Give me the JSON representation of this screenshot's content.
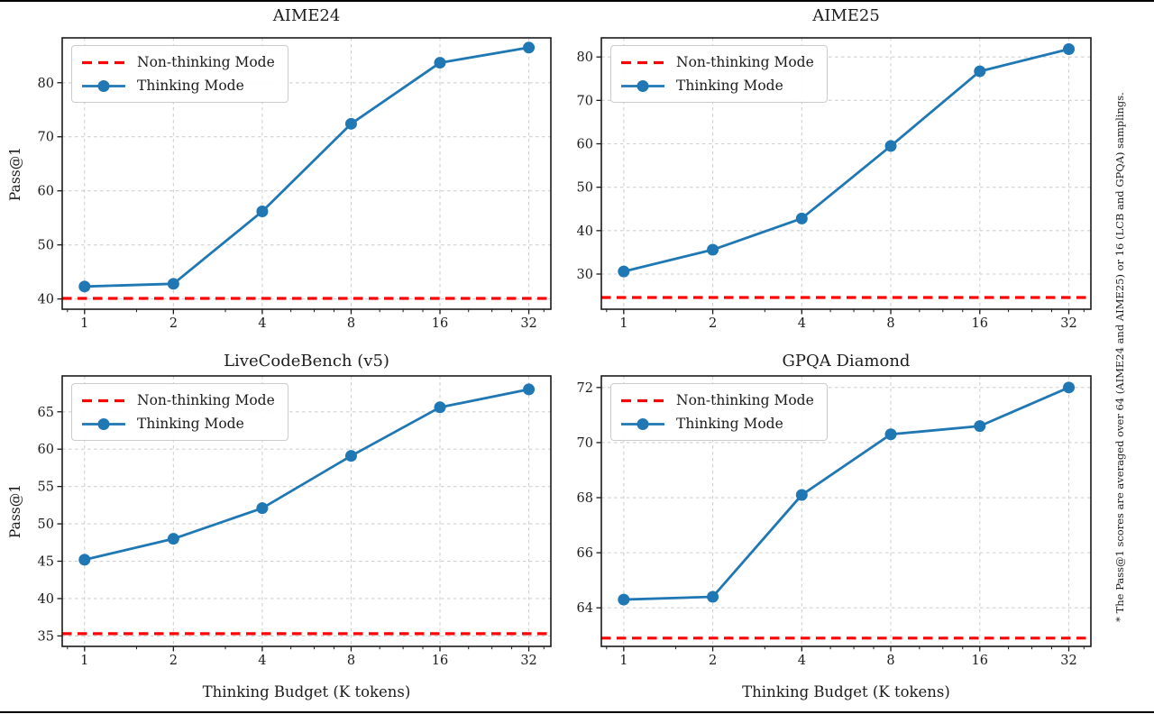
{
  "colors": {
    "thinking": "#1f77b4",
    "non_thinking": "#ff0000",
    "grid": "#d0d0d0",
    "spine": "#1a1a1a",
    "text": "#1c1c1c",
    "legend_border": "#cccccc"
  },
  "legend": {
    "non_thinking": "Non-thinking Mode",
    "thinking": "Thinking Mode"
  },
  "ylabel": "Pass@1",
  "xlabel": "Thinking Budget (K tokens)",
  "footnote": "* The Pass@1 scores are averaged over 64 (AIME24 and AIME25) or 16 (LCB and GPQA) samplings.",
  "axis": {
    "xscale": "log2",
    "xticks": [
      1,
      2,
      4,
      8,
      16,
      32
    ],
    "xticks_minor": [
      0.875,
      1.5,
      3,
      5,
      6,
      7,
      10,
      12,
      14,
      20,
      24,
      28,
      36
    ],
    "xlim": [
      0.84,
      38.0
    ],
    "grid": true,
    "legend_position": "upper left"
  },
  "chart_data": [
    {
      "type": "line",
      "title": "AIME24",
      "x": [
        1,
        2,
        4,
        8,
        16,
        32
      ],
      "thinking_values": [
        42.3,
        42.8,
        56.2,
        72.4,
        83.7,
        86.5
      ],
      "non_thinking_value": 40.1,
      "yticks": [
        40,
        50,
        60,
        70,
        80
      ],
      "ylim": [
        38.1,
        88.3
      ],
      "ylabel": "Pass@1"
    },
    {
      "type": "line",
      "title": "AIME25",
      "x": [
        1,
        2,
        4,
        8,
        16,
        32
      ],
      "thinking_values": [
        30.6,
        35.6,
        42.8,
        59.5,
        76.7,
        81.8
      ],
      "non_thinking_value": 24.6,
      "yticks": [
        30,
        40,
        50,
        60,
        70,
        80
      ],
      "ylim": [
        21.9,
        84.4
      ],
      "ylabel": ""
    },
    {
      "type": "line",
      "title": "LiveCodeBench (v5)",
      "x": [
        1,
        2,
        4,
        8,
        16,
        32
      ],
      "thinking_values": [
        45.2,
        48.0,
        52.1,
        59.1,
        65.6,
        68.0
      ],
      "non_thinking_value": 35.3,
      "yticks": [
        35,
        40,
        45,
        50,
        55,
        60,
        65
      ],
      "ylim": [
        33.6,
        69.8
      ],
      "ylabel": "Pass@1",
      "xlabel": "Thinking Budget (K tokens)"
    },
    {
      "type": "line",
      "title": "GPQA Diamond",
      "x": [
        1,
        2,
        4,
        8,
        16,
        32
      ],
      "thinking_values": [
        64.3,
        64.4,
        68.1,
        70.3,
        70.6,
        72.0
      ],
      "non_thinking_value": 62.9,
      "yticks": [
        64,
        66,
        68,
        70,
        72
      ],
      "ylim": [
        62.6,
        72.42
      ],
      "ylabel": "",
      "xlabel": "Thinking Budget (K tokens)"
    }
  ]
}
